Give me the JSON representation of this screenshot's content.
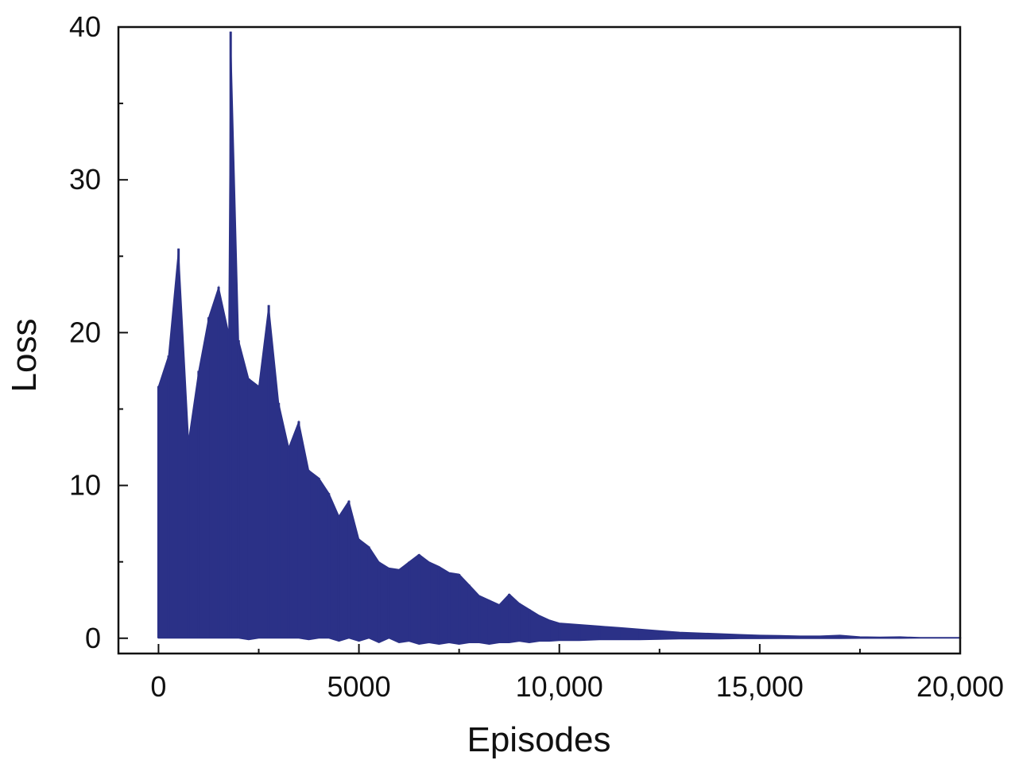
{
  "chart_data": {
    "type": "line",
    "title": "",
    "xlabel": "Episodes",
    "ylabel": "Loss",
    "xlim": [
      -1000,
      20000
    ],
    "ylim": [
      -1,
      40
    ],
    "x_ticks": [
      0,
      5000,
      10000,
      15000,
      20000
    ],
    "x_tick_labels": [
      "0",
      "5000",
      "10,000",
      "15,000",
      "20,000"
    ],
    "y_ticks": [
      0,
      10,
      20,
      30,
      40
    ],
    "y_tick_labels": [
      "0",
      "10",
      "20",
      "30",
      "40"
    ],
    "grid": false,
    "legend": "none",
    "series": [
      {
        "color": "#2b3187",
        "x": [
          0,
          250,
          500,
          750,
          1000,
          1250,
          1500,
          1750,
          1800,
          2000,
          2250,
          2500,
          2750,
          3000,
          3250,
          3500,
          3750,
          4000,
          4250,
          4500,
          4750,
          5000,
          5250,
          5500,
          5750,
          6000,
          6250,
          6500,
          6750,
          7000,
          7250,
          7500,
          7750,
          8000,
          8250,
          8500,
          8750,
          9000,
          9250,
          9500,
          9750,
          10000,
          10500,
          11000,
          11500,
          12000,
          12500,
          13000,
          13500,
          14000,
          14500,
          15000,
          15500,
          16000,
          16500,
          17000,
          17500,
          18000,
          18500,
          19000,
          19500,
          20000
        ],
        "upper": [
          16.5,
          18.5,
          25.5,
          13,
          17.5,
          21,
          23,
          20,
          39.7,
          19.5,
          17,
          16.5,
          21.8,
          15.4,
          12.5,
          14.2,
          11,
          10.5,
          9.5,
          8,
          9,
          6.5,
          6,
          5,
          4.6,
          4.5,
          5,
          5.5,
          5,
          4.7,
          4.3,
          4.2,
          3.5,
          2.8,
          2.5,
          2.2,
          2.9,
          2.3,
          1.9,
          1.5,
          1.2,
          1,
          0.9,
          0.8,
          0.7,
          0.6,
          0.5,
          0.4,
          0.35,
          0.3,
          0.25,
          0.2,
          0.18,
          0.15,
          0.15,
          0.2,
          0.1,
          0.08,
          0.1,
          0.05,
          0.05,
          0.05
        ],
        "lower": [
          0,
          0,
          0,
          0,
          0,
          0,
          0,
          0,
          0,
          0,
          -0.1,
          0,
          0,
          0,
          0,
          0,
          -0.1,
          0,
          0,
          -0.2,
          0,
          -0.2,
          0,
          -0.3,
          0,
          -0.3,
          -0.2,
          -0.4,
          -0.3,
          -0.4,
          -0.3,
          -0.4,
          -0.3,
          -0.3,
          -0.4,
          -0.3,
          -0.3,
          -0.2,
          -0.3,
          -0.2,
          -0.2,
          -0.15,
          -0.15,
          -0.1,
          -0.1,
          -0.1,
          -0.08,
          -0.05,
          -0.05,
          -0.05,
          -0.03,
          -0.03,
          -0.02,
          -0.02,
          -0.02,
          -0.02,
          -0.01,
          -0.01,
          -0.01,
          0,
          0,
          0
        ]
      }
    ]
  }
}
